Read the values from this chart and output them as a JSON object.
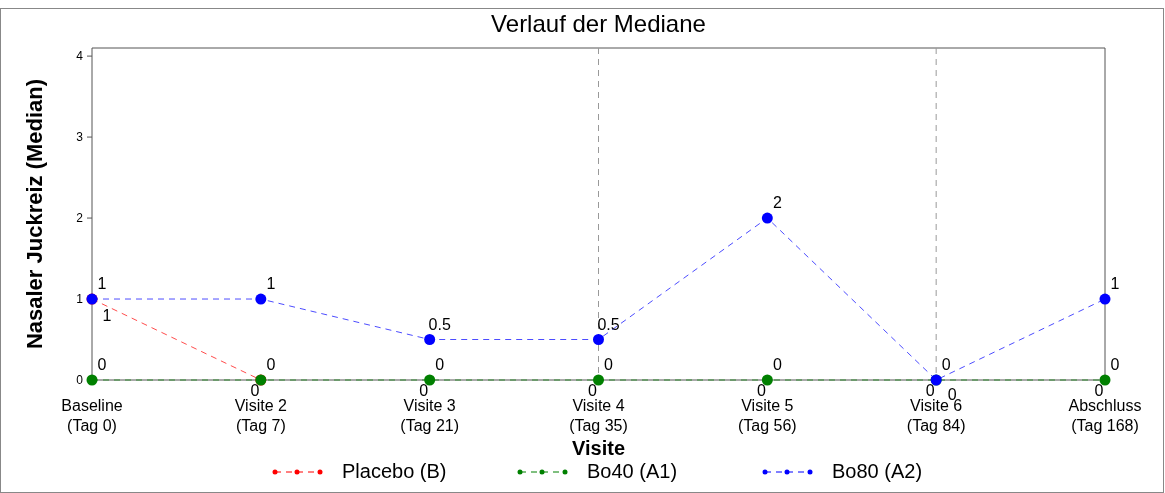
{
  "chart_data": {
    "type": "line",
    "title": "Verlauf der Mediane",
    "xlabel": "Visite",
    "ylabel": "Nasaler Juckreiz (Median)",
    "categories": [
      "Baseline\n(Tag 0)",
      "Visite 2\n(Tag 7)",
      "Visite 3\n(Tag 21)",
      "Visite 4\n(Tag 35)",
      "Visite 5\n(Tag 56)",
      "Visite 6\n(Tag 84)",
      "Abschluss\n(Tag 168)"
    ],
    "series": [
      {
        "name": "Placebo (B)",
        "color": "#ff0000",
        "values": [
          1,
          0,
          null,
          null,
          null,
          null,
          null
        ]
      },
      {
        "name": "Bo40 (A1)",
        "color": "#008000",
        "values": [
          0,
          0,
          0,
          0,
          0,
          0,
          0
        ]
      },
      {
        "name": "Bo80 (A2)",
        "color": "#0000ff",
        "values": [
          1,
          1,
          0.5,
          0.5,
          2,
          0,
          1
        ]
      }
    ],
    "ylim": [
      0,
      4.1
    ],
    "yticks": [
      0,
      1,
      2,
      3,
      4
    ],
    "ref_lines": [
      {
        "axis": "x",
        "value": "Visite 4\n(Tag 35)",
        "color": "#999999",
        "line_style": "dashed"
      },
      {
        "axis": "x",
        "value": "Visite 6\n(Tag 84)",
        "color": "#999999",
        "line_style": "dashed"
      }
    ],
    "annotations": [
      {
        "text": "0",
        "x": "Visite 3\n(Tag 21)",
        "y": 0
      },
      {
        "text": "0",
        "x": "Visite 4\n(Tag 35)",
        "y": 0
      },
      {
        "text": "0",
        "x": "Visite 5\n(Tag 56)",
        "y": 0
      },
      {
        "text": "0",
        "x": "Visite 6\n(Tag 84)",
        "y": 0
      },
      {
        "text": "0",
        "x": "Abschluss\n(Tag 168)",
        "y": 0
      }
    ],
    "data_labels": true,
    "marker": "circle",
    "line_style": "dashed",
    "legend": "bottom",
    "grid": false
  }
}
